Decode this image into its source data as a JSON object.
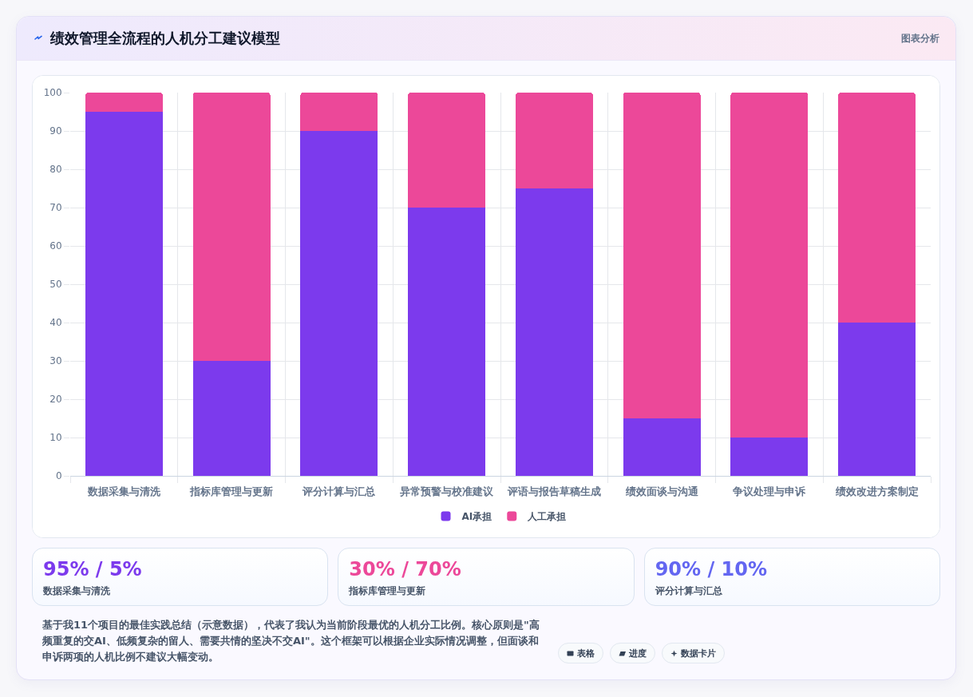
{
  "chart_data": [
    {
      "type": "bar",
      "title": "绩效管理全流程的人机分工建议模型",
      "annotations": [
        "图表分析"
      ],
      "categories": [
        "数据采集与清洗",
        "指标库管理与更新",
        "评分计算与汇总",
        "异常预警与校准建议",
        "评语与报告草稿生成",
        "绩效面谈与沟通",
        "争议处理与申诉",
        "绩效改进方案制定"
      ],
      "series": [
        {
          "name": "AI承担",
          "color": "#7c3aed",
          "values": [
            95,
            30,
            90,
            70,
            75,
            15,
            10,
            40
          ]
        },
        {
          "name": "人工承担",
          "color": "#ec4899",
          "values": [
            5,
            70,
            10,
            30,
            25,
            85,
            90,
            60
          ]
        }
      ],
      "stacked": true,
      "ylim": [
        0,
        100
      ],
      "yticks": [
        0,
        10,
        20,
        30,
        40,
        50,
        60,
        70,
        80,
        90,
        100
      ],
      "grid": true,
      "legend": "bottom"
    },
    {
      "type": "other",
      "categories": [
        "数据采集与清洗",
        "指标库管理与更新",
        "评分计算与汇总"
      ],
      "value_labels": [
        "95% / 5%",
        "30% / 70%",
        "90% / 10%"
      ],
      "annotations": [
        "基于我11个项目的最佳实践总结（示意数据），代表了我认为当前阶段最优的人机分工比例。核心原则是\"高频重复的交AI、低频复杂的留人、需要共情的坚决不交AI\"。这个框架可以根据企业实际情况调整，但面谈和申诉两项的人机比例不建议大幅变动。",
        "表格",
        "进度",
        "数据卡片"
      ]
    }
  ]
}
